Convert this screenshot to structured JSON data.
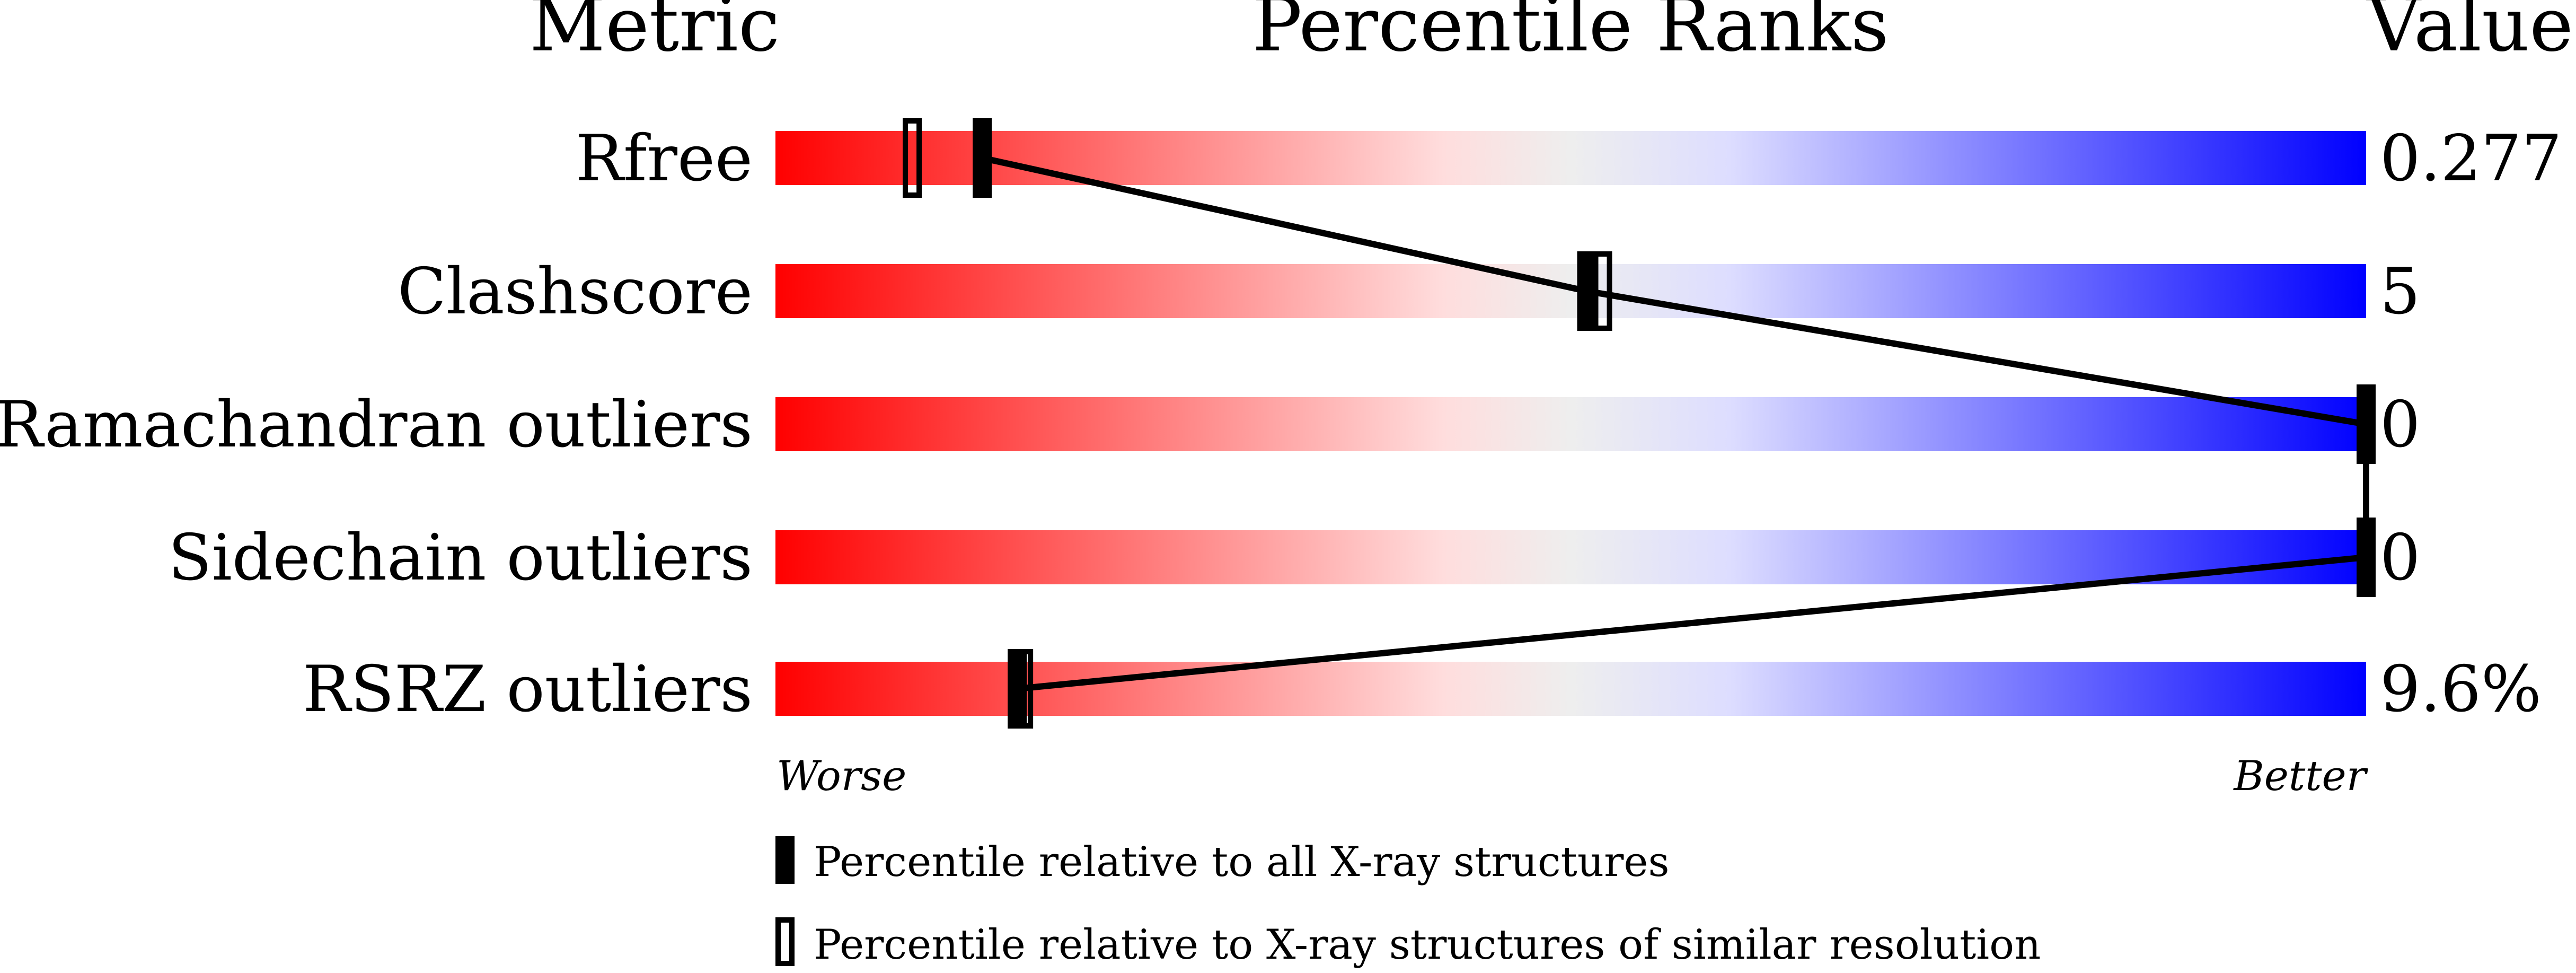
{
  "chart_data": {
    "type": "percentile-slider",
    "headers": {
      "metric": "Metric",
      "ranks": "Percentile Ranks",
      "value": "Value"
    },
    "axis": {
      "left_label": "Worse",
      "right_label": "Better",
      "range": [
        0,
        100
      ]
    },
    "gradient_colors": [
      "#ff0000",
      "#ffdddd",
      "#eeeeee",
      "#ddddff",
      "#0000ff"
    ],
    "rows": [
      {
        "metric": "Rfree",
        "value": "0.277",
        "percentile_all": 13,
        "percentile_similar": 8.6
      },
      {
        "metric": "Clashscore",
        "value": "5",
        "percentile_all": 51,
        "percentile_similar": 52
      },
      {
        "metric": "Ramachandran outliers",
        "value": "0",
        "percentile_all": 100,
        "percentile_similar": null
      },
      {
        "metric": "Sidechain outliers",
        "value": "0",
        "percentile_all": 100,
        "percentile_similar": null
      },
      {
        "metric": "RSRZ outliers",
        "value": "9.6%",
        "percentile_all": 15.2,
        "percentile_similar": 15.6
      }
    ],
    "legend": [
      {
        "marker": "filled",
        "label": "Percentile relative to all X-ray structures"
      },
      {
        "marker": "hollow",
        "label": "Percentile relative to X-ray structures of similar resolution"
      }
    ]
  }
}
